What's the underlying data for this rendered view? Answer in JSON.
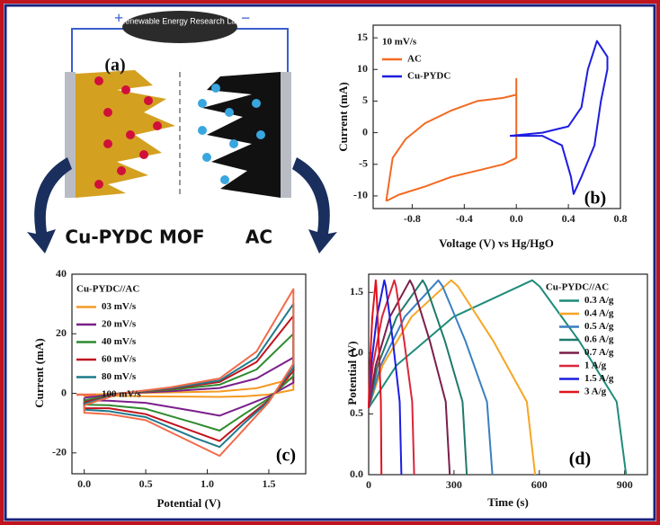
{
  "diagram": {
    "lab_name": "Renewable Energy Research Lab",
    "panel_label": "(a)",
    "left_label": "Cu-PYDC MOF",
    "right_label": "AC"
  },
  "chart_data": [
    {
      "type": "line",
      "panel_label": "(b)",
      "x_label": "Voltage (V) vs Hg/HgO",
      "y_label": "Current (mA)",
      "legend_title": "10 mV/s",
      "xlim": [
        -1.1,
        0.8
      ],
      "xticks": [
        -0.8,
        -0.4,
        {
          "value": 0,
          "label": "0.0"
        },
        0.4,
        0.8
      ],
      "ylim": [
        -12,
        17
      ],
      "yticks": [
        -10,
        -5,
        0,
        5,
        10,
        15
      ],
      "series": [
        {
          "name": "AC",
          "color": "#f26a21",
          "x": [
            -1.0,
            -0.95,
            -0.85,
            -0.7,
            -0.5,
            -0.3,
            -0.1,
            0.0,
            0.0,
            0.0,
            -0.1,
            -0.3,
            -0.5,
            -0.7,
            -0.9,
            -1.0
          ],
          "values": [
            -10.8,
            -4,
            -1,
            1.5,
            3.5,
            5,
            5.5,
            6,
            8.5,
            -4,
            -5,
            -6,
            -7,
            -8.5,
            -9.8,
            -10.8
          ]
        },
        {
          "name": "Cu-PYDC",
          "color": "#1d1de0",
          "x": [
            -0.05,
            0.2,
            0.35,
            0.42,
            0.44,
            0.5,
            0.6,
            0.65,
            0.7,
            0.7,
            0.62,
            0.55,
            0.5,
            0.4,
            0.2,
            -0.05
          ],
          "values": [
            -0.5,
            -0.5,
            -2,
            -7,
            -9.7,
            -7,
            -2,
            5,
            10,
            12,
            14.5,
            10,
            4,
            1,
            0,
            -0.5
          ]
        }
      ]
    },
    {
      "type": "line",
      "panel_label": "(c)",
      "x_label": "Potential (V)",
      "y_label": "Current (mA)",
      "legend_title": "Cu-PYDC//AC",
      "xlim": [
        -0.1,
        1.8
      ],
      "xticks": [
        {
          "value": 0,
          "label": "0.0"
        },
        0.5,
        {
          "value": 1,
          "label": "1.0"
        },
        1.5
      ],
      "ylim": [
        -27,
        40
      ],
      "yticks": [
        -20,
        0,
        20,
        40
      ],
      "series": [
        {
          "name": "03 mV/s",
          "color": "#f59a23",
          "x": [
            0,
            0.3,
            0.7,
            1.1,
            1.4,
            1.7,
            1.7,
            1.5,
            1.3,
            1.1,
            0.9,
            0.5,
            0.2,
            0,
            0
          ],
          "values": [
            -0.5,
            0,
            0.3,
            0.6,
            1.7,
            5,
            1.2,
            -0.4,
            -1,
            -1.2,
            -1.1,
            -1,
            -0.8,
            -0.8,
            -0.5
          ]
        },
        {
          "name": "20 mV/s",
          "color": "#7b1f8c",
          "x": [
            0,
            0.3,
            0.7,
            1.1,
            1.4,
            1.7,
            1.7,
            1.5,
            1.3,
            1.1,
            0.9,
            0.5,
            0.2,
            0,
            0
          ],
          "values": [
            -1.5,
            0,
            0.7,
            1.8,
            5,
            12,
            3.6,
            -1,
            -4.3,
            -7.5,
            -6,
            -3.2,
            -2.5,
            -2.3,
            -1.5
          ]
        },
        {
          "name": "40 mV/s",
          "color": "#2e8b2e",
          "x": [
            0,
            0.3,
            0.7,
            1.1,
            1.4,
            1.7,
            1.7,
            1.5,
            1.3,
            1.1,
            0.9,
            0.5,
            0.2,
            0,
            0
          ],
          "values": [
            -2.3,
            0,
            1.2,
            2.9,
            8,
            20,
            5.8,
            -1.7,
            -7,
            -12.5,
            -10,
            -5.2,
            -4,
            -3.8,
            -2.3
          ]
        },
        {
          "name": "60 mV/s",
          "color": "#c0141e",
          "x": [
            0,
            0.3,
            0.7,
            1.1,
            1.4,
            1.7,
            1.7,
            1.5,
            1.3,
            1.1,
            0.9,
            0.5,
            0.2,
            0,
            0
          ],
          "values": [
            -3,
            0,
            1.5,
            3.8,
            10.5,
            26,
            7.5,
            -2.3,
            -9,
            -16,
            -13,
            -7,
            -5,
            -5,
            -3
          ]
        },
        {
          "name": "80 mV/s",
          "color": "#1f7a8c",
          "x": [
            0,
            0.3,
            0.7,
            1.1,
            1.4,
            1.7,
            1.7,
            1.5,
            1.3,
            1.1,
            0.9,
            0.5,
            0.2,
            0,
            0
          ],
          "values": [
            -3.5,
            0,
            1.7,
            4.3,
            12,
            30,
            8.7,
            -2.6,
            -10,
            -18,
            -15,
            -8,
            -6,
            -5.5,
            -3.5
          ]
        },
        {
          "name": "100 mV/s",
          "color": "#f26b4a",
          "x": [
            0,
            0.3,
            0.7,
            1.1,
            1.4,
            1.7,
            1.7,
            1.5,
            1.3,
            1.1,
            0.9,
            0.5,
            0.2,
            0,
            0
          ],
          "values": [
            -4,
            0,
            2,
            5,
            14,
            35,
            10,
            -3,
            -12,
            -21,
            -17,
            -9,
            -7,
            -6.5,
            -4
          ]
        }
      ]
    },
    {
      "type": "line",
      "panel_label": "(d)",
      "x_label": "Time (s)",
      "y_label": "Potential (V)",
      "legend_title": "Cu-PYDC//AC",
      "xlim": [
        0,
        980
      ],
      "xticks": [
        0,
        300,
        600,
        900
      ],
      "ylim": [
        0,
        1.65
      ],
      "yticks": [
        {
          "value": 0,
          "label": "0.0"
        },
        0.5,
        {
          "value": 1,
          "label": "1.0"
        },
        1.5
      ],
      "series": [
        {
          "name": "0.3 A/g",
          "color": "#1f8c7a",
          "x": [
            0,
            98,
            299,
            575,
            601,
            740,
            872,
            905
          ],
          "values": [
            0.55,
            0.9,
            1.3,
            1.6,
            1.55,
            1.1,
            0.6,
            0
          ]
        },
        {
          "name": "0.4 A/g",
          "color": "#f5a623",
          "x": [
            0,
            49,
            151,
            290,
            314,
            438,
            556,
            585
          ],
          "values": [
            0.55,
            0.9,
            1.3,
            1.6,
            1.55,
            1.1,
            0.6,
            0
          ]
        },
        {
          "name": "0.5 A/g",
          "color": "#3a7fc1",
          "x": [
            0,
            42,
            127,
            245,
            260,
            340,
            416,
            435
          ],
          "values": [
            0.55,
            0.9,
            1.3,
            1.6,
            1.55,
            1.1,
            0.6,
            0
          ]
        },
        {
          "name": "0.6 A/g",
          "color": "#1f7a6c",
          "x": [
            0,
            32,
            99,
            190,
            202,
            268,
            330,
            345
          ],
          "values": [
            0.55,
            0.9,
            1.3,
            1.6,
            1.55,
            1.1,
            0.6,
            0
          ]
        },
        {
          "name": "0.7 A/g",
          "color": "#7a1f4a",
          "x": [
            0,
            25,
            75,
            145,
            156,
            215,
            271,
            285
          ],
          "values": [
            0.55,
            0.9,
            1.3,
            1.6,
            1.55,
            1.1,
            0.6,
            0
          ]
        },
        {
          "name": "1 A/g",
          "color": "#d9263a",
          "x": [
            0,
            15,
            47,
            90,
            96,
            125,
            153,
            160
          ],
          "values": [
            0.55,
            0.9,
            1.3,
            1.6,
            1.55,
            1.1,
            0.6,
            0
          ]
        },
        {
          "name": "1.5 A/g",
          "color": "#1d1de0",
          "x": [
            0,
            9,
            29,
            55,
            60,
            85,
            109,
            115
          ],
          "values": [
            0.55,
            0.9,
            1.3,
            1.6,
            1.55,
            1.1,
            0.6,
            0
          ]
        },
        {
          "name": "3 A/g",
          "color": "#e0141e",
          "x": [
            0,
            4,
            13,
            25,
            27,
            35,
            43,
            45
          ],
          "values": [
            0.55,
            0.9,
            1.3,
            1.6,
            1.55,
            1.1,
            0.6,
            0
          ]
        }
      ]
    }
  ]
}
